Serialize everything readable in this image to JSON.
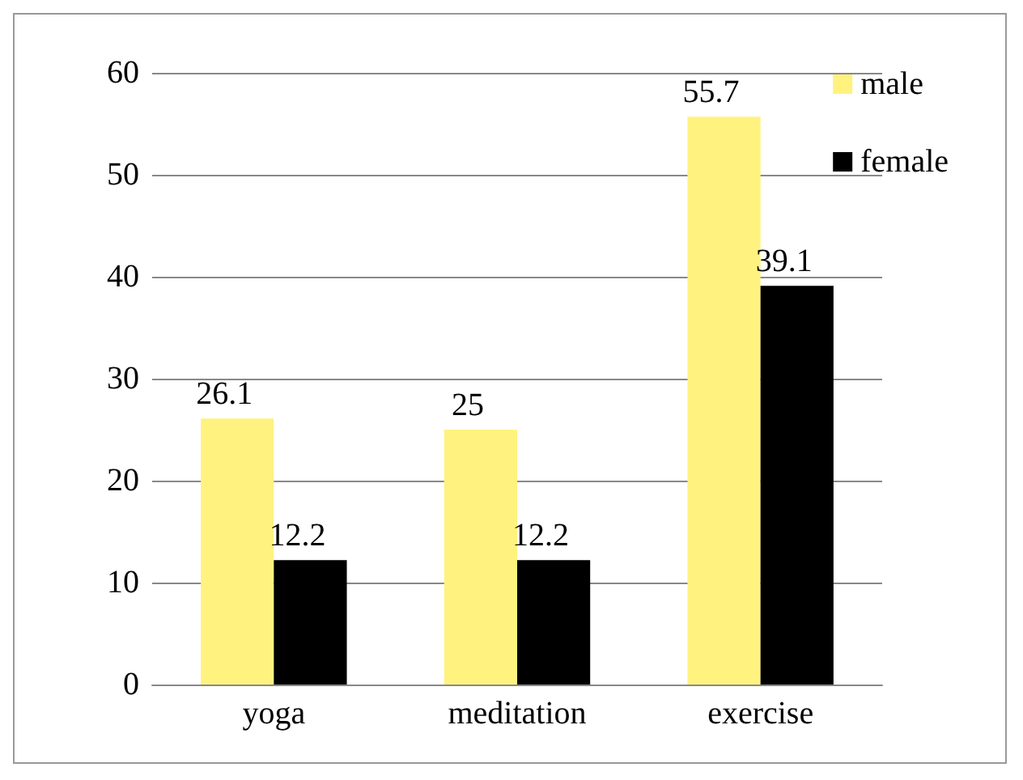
{
  "chart_data": {
    "type": "bar",
    "categories": [
      "yoga",
      "meditation",
      "exercise"
    ],
    "series": [
      {
        "name": "male",
        "color": "#fff27f",
        "values": [
          26.1,
          25,
          55.7
        ]
      },
      {
        "name": "female",
        "color": "#000000",
        "values": [
          12.2,
          12.2,
          39.1
        ]
      }
    ],
    "ylim": [
      0,
      60
    ],
    "yticks": [
      0,
      10,
      20,
      30,
      40,
      50,
      60
    ],
    "grid": "y",
    "legend": "top right",
    "data_labels": true
  }
}
